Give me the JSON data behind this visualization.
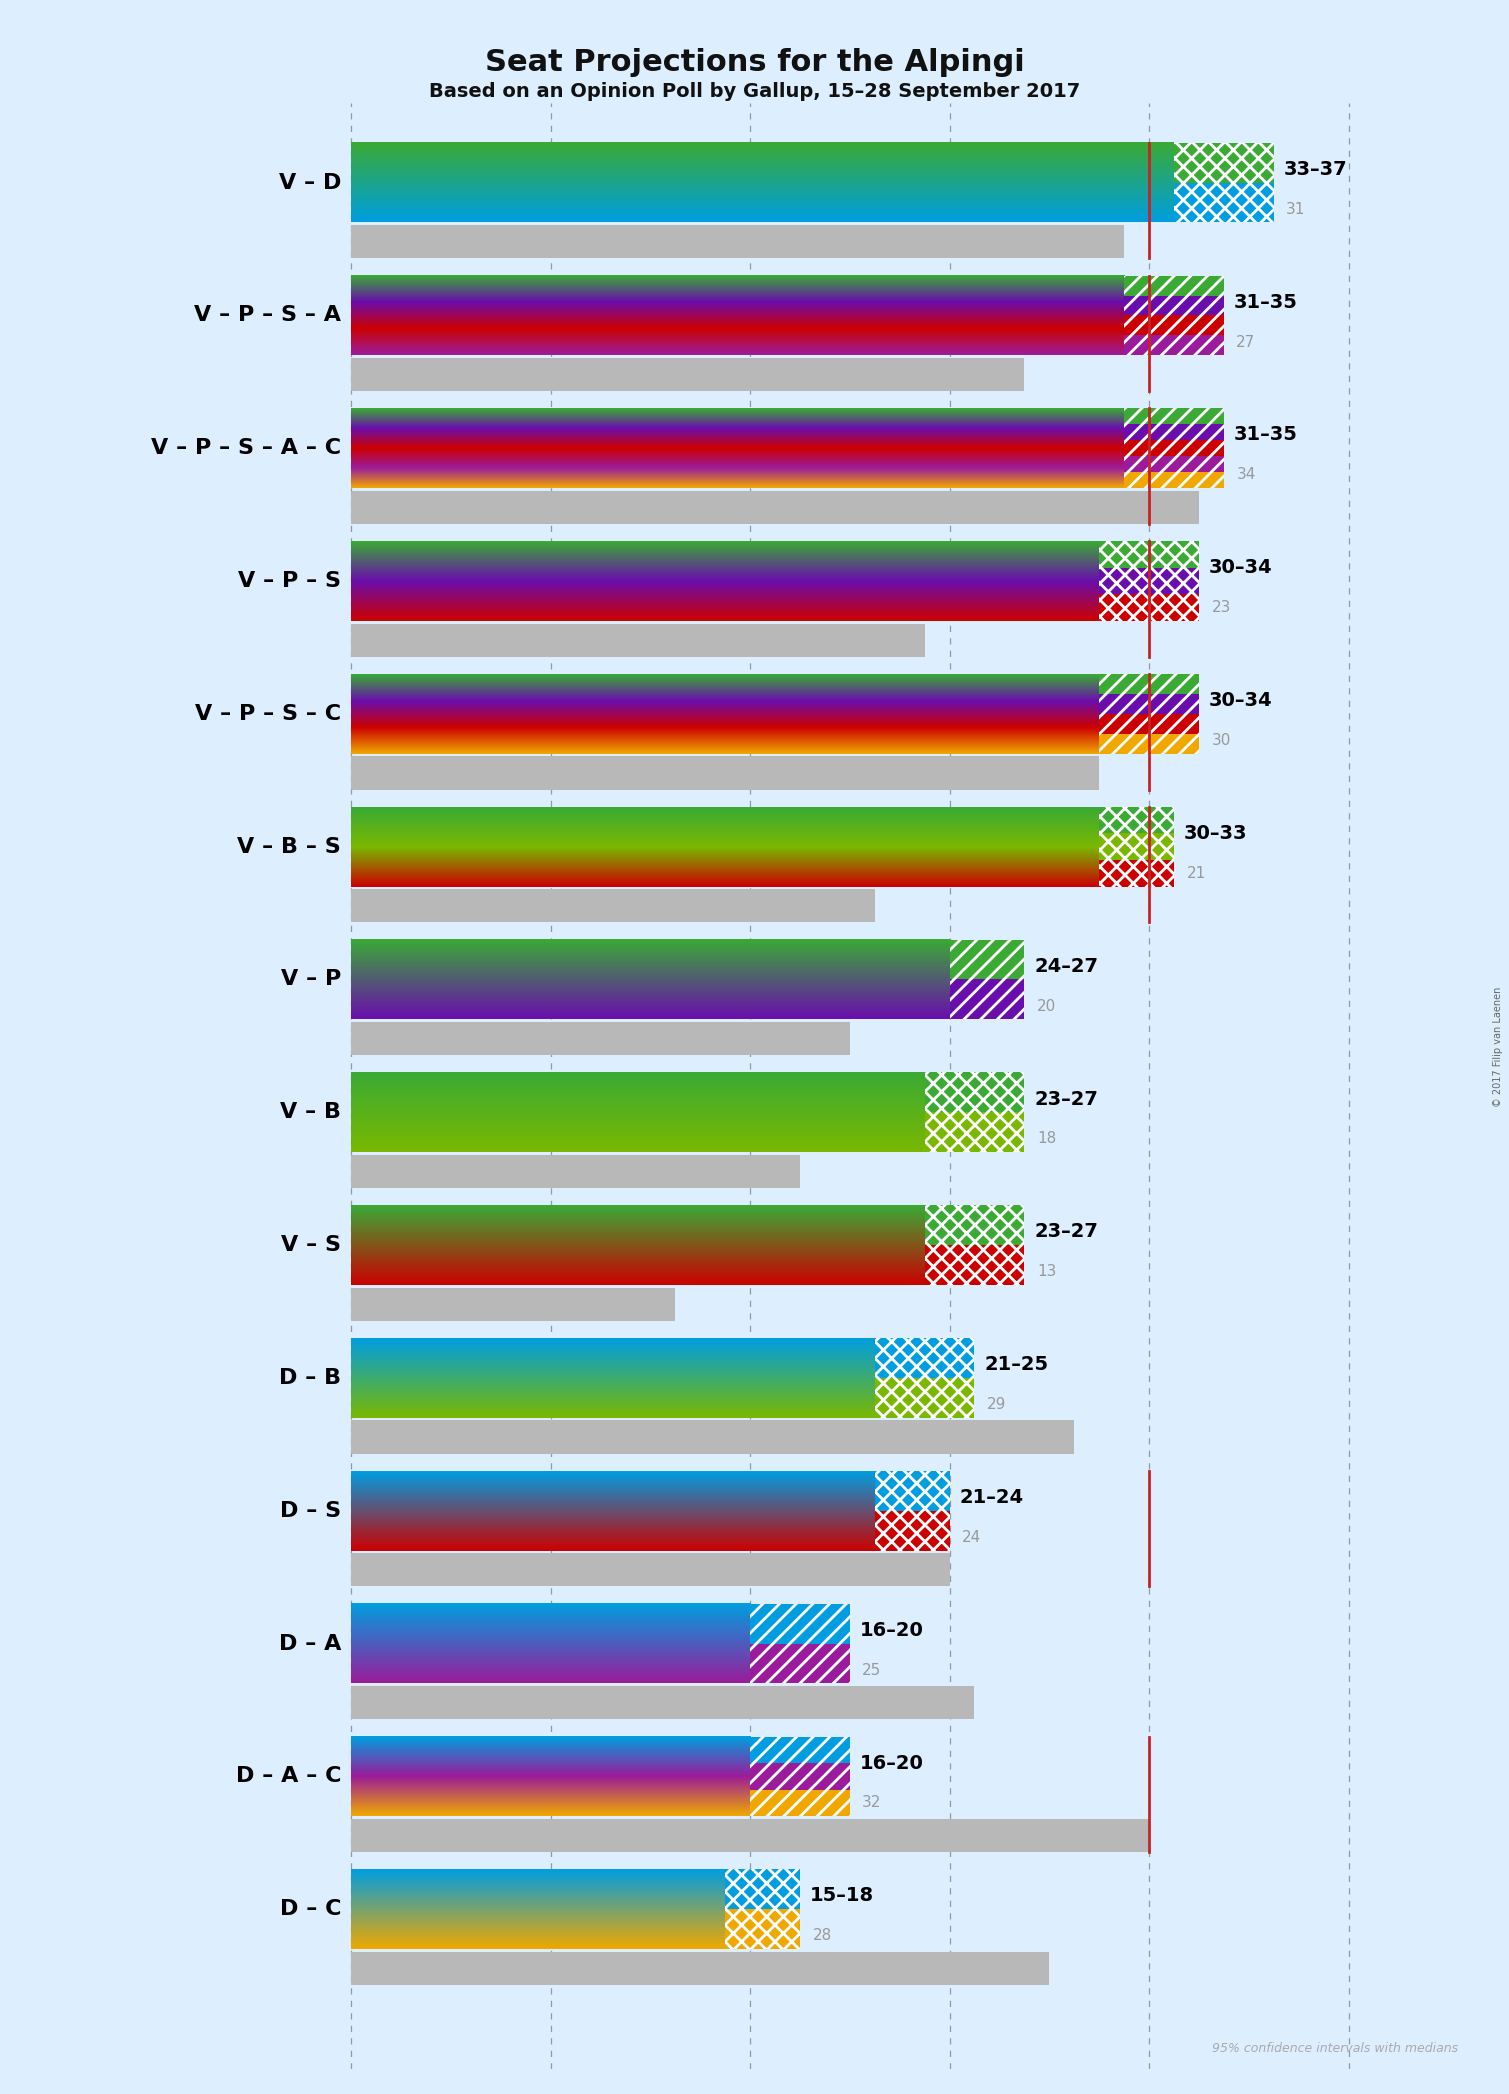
{
  "title": "Seat Projections for the Alpingi",
  "subtitle": "Based on an Opinion Poll by Gallup, 15–28 September 2017",
  "copyright": "© 2017 Filip van Laenen",
  "background_color": "#ddeeff",
  "coalitions": [
    {
      "name": "V – D",
      "ci_lo": 33,
      "ci_hi": 37,
      "median": 31,
      "colors": [
        "#3aaa35",
        "#009ee0"
      ],
      "hatch": "xx",
      "red_line": true
    },
    {
      "name": "V – P – S – A",
      "ci_lo": 31,
      "ci_hi": 35,
      "median": 27,
      "colors": [
        "#3aaa35",
        "#6a0dad",
        "#cc0000",
        "#9b1c9b"
      ],
      "hatch": "//",
      "red_line": true
    },
    {
      "name": "V – P – S – A – C",
      "ci_lo": 31,
      "ci_hi": 35,
      "median": 34,
      "colors": [
        "#3aaa35",
        "#6a0dad",
        "#cc0000",
        "#9b1c9b",
        "#f0a800"
      ],
      "hatch": "//",
      "red_line": true
    },
    {
      "name": "V – P – S",
      "ci_lo": 30,
      "ci_hi": 34,
      "median": 23,
      "colors": [
        "#3aaa35",
        "#6a0dad",
        "#cc0000"
      ],
      "hatch": "xx",
      "red_line": true
    },
    {
      "name": "V – P – S – C",
      "ci_lo": 30,
      "ci_hi": 34,
      "median": 30,
      "colors": [
        "#3aaa35",
        "#6a0dad",
        "#cc0000",
        "#f0a800"
      ],
      "hatch": "//",
      "red_line": true
    },
    {
      "name": "V – B – S",
      "ci_lo": 30,
      "ci_hi": 33,
      "median": 21,
      "colors": [
        "#3aaa35",
        "#7ab800",
        "#cc0000"
      ],
      "hatch": "xx",
      "red_line": true
    },
    {
      "name": "V – P",
      "ci_lo": 24,
      "ci_hi": 27,
      "median": 20,
      "colors": [
        "#3aaa35",
        "#6a0dad"
      ],
      "hatch": "//",
      "red_line": false
    },
    {
      "name": "V – B",
      "ci_lo": 23,
      "ci_hi": 27,
      "median": 18,
      "colors": [
        "#3aaa35",
        "#7ab800"
      ],
      "hatch": "xx",
      "red_line": false
    },
    {
      "name": "V – S",
      "ci_lo": 23,
      "ci_hi": 27,
      "median": 13,
      "colors": [
        "#3aaa35",
        "#cc0000"
      ],
      "hatch": "xx",
      "red_line": false
    },
    {
      "name": "D – B",
      "ci_lo": 21,
      "ci_hi": 25,
      "median": 29,
      "colors": [
        "#009ee0",
        "#7ab800"
      ],
      "hatch": "xx",
      "red_line": false
    },
    {
      "name": "D – S",
      "ci_lo": 21,
      "ci_hi": 24,
      "median": 24,
      "colors": [
        "#009ee0",
        "#cc0000"
      ],
      "hatch": "xx",
      "red_line": true
    },
    {
      "name": "D – A",
      "ci_lo": 16,
      "ci_hi": 20,
      "median": 25,
      "colors": [
        "#009ee0",
        "#9b1c9b"
      ],
      "hatch": "//",
      "red_line": false
    },
    {
      "name": "D – A – C",
      "ci_lo": 16,
      "ci_hi": 20,
      "median": 32,
      "colors": [
        "#009ee0",
        "#9b1c9b",
        "#f0a800"
      ],
      "hatch": "//",
      "red_line": true
    },
    {
      "name": "D – C",
      "ci_lo": 15,
      "ci_hi": 18,
      "median": 28,
      "colors": [
        "#009ee0",
        "#f0a800"
      ],
      "hatch": "xx",
      "red_line": false
    }
  ],
  "majority_line": 32,
  "x_max": 40,
  "x_ticks": [
    0,
    8,
    16,
    24,
    32,
    40
  ],
  "bar_height": 0.6,
  "gray_bar_height": 0.25
}
